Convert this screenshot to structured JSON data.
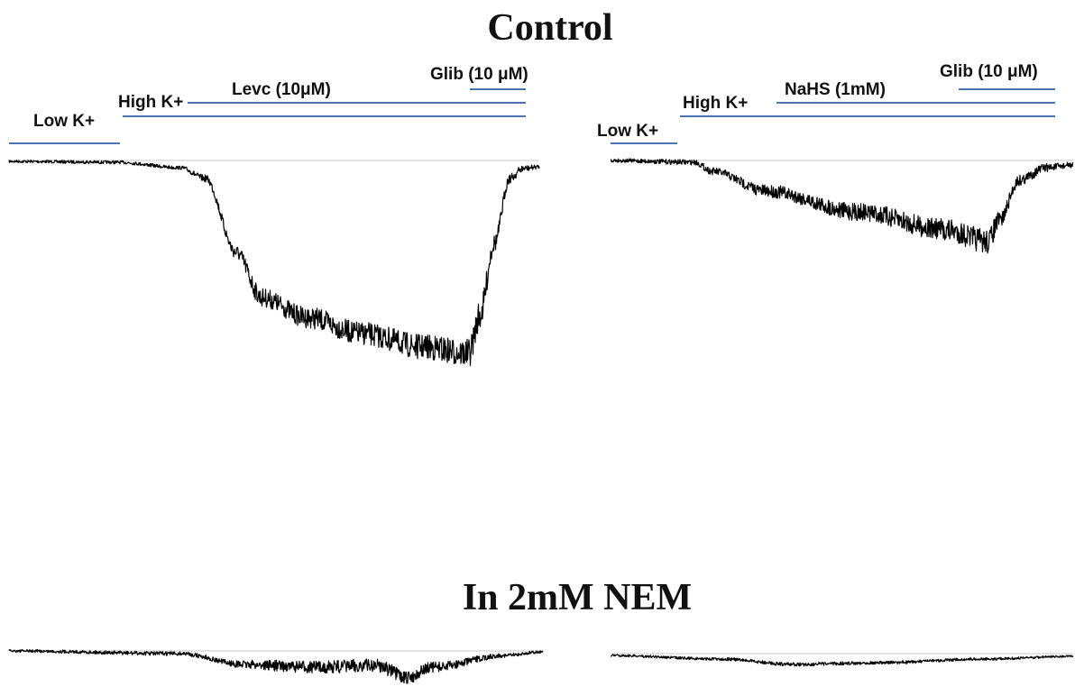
{
  "titles": {
    "control": "Control",
    "nem": "In 2mM NEM"
  },
  "panels": {
    "control_levc": {
      "labels": {
        "low_k": "Low K+",
        "high_k": "High K+",
        "drug": "Levc (10μM)",
        "glib": "Glib (10 μM)"
      }
    },
    "control_nahs": {
      "labels": {
        "low_k": "Low K+",
        "high_k": "High K+",
        "drug": "NaHS (1mM)",
        "glib": "Glib (10 μM)"
      }
    }
  },
  "colors": {
    "bar": "#4a73b5",
    "trace": "#000000",
    "baseline": "#c8c8c8",
    "text": "#111111"
  }
}
